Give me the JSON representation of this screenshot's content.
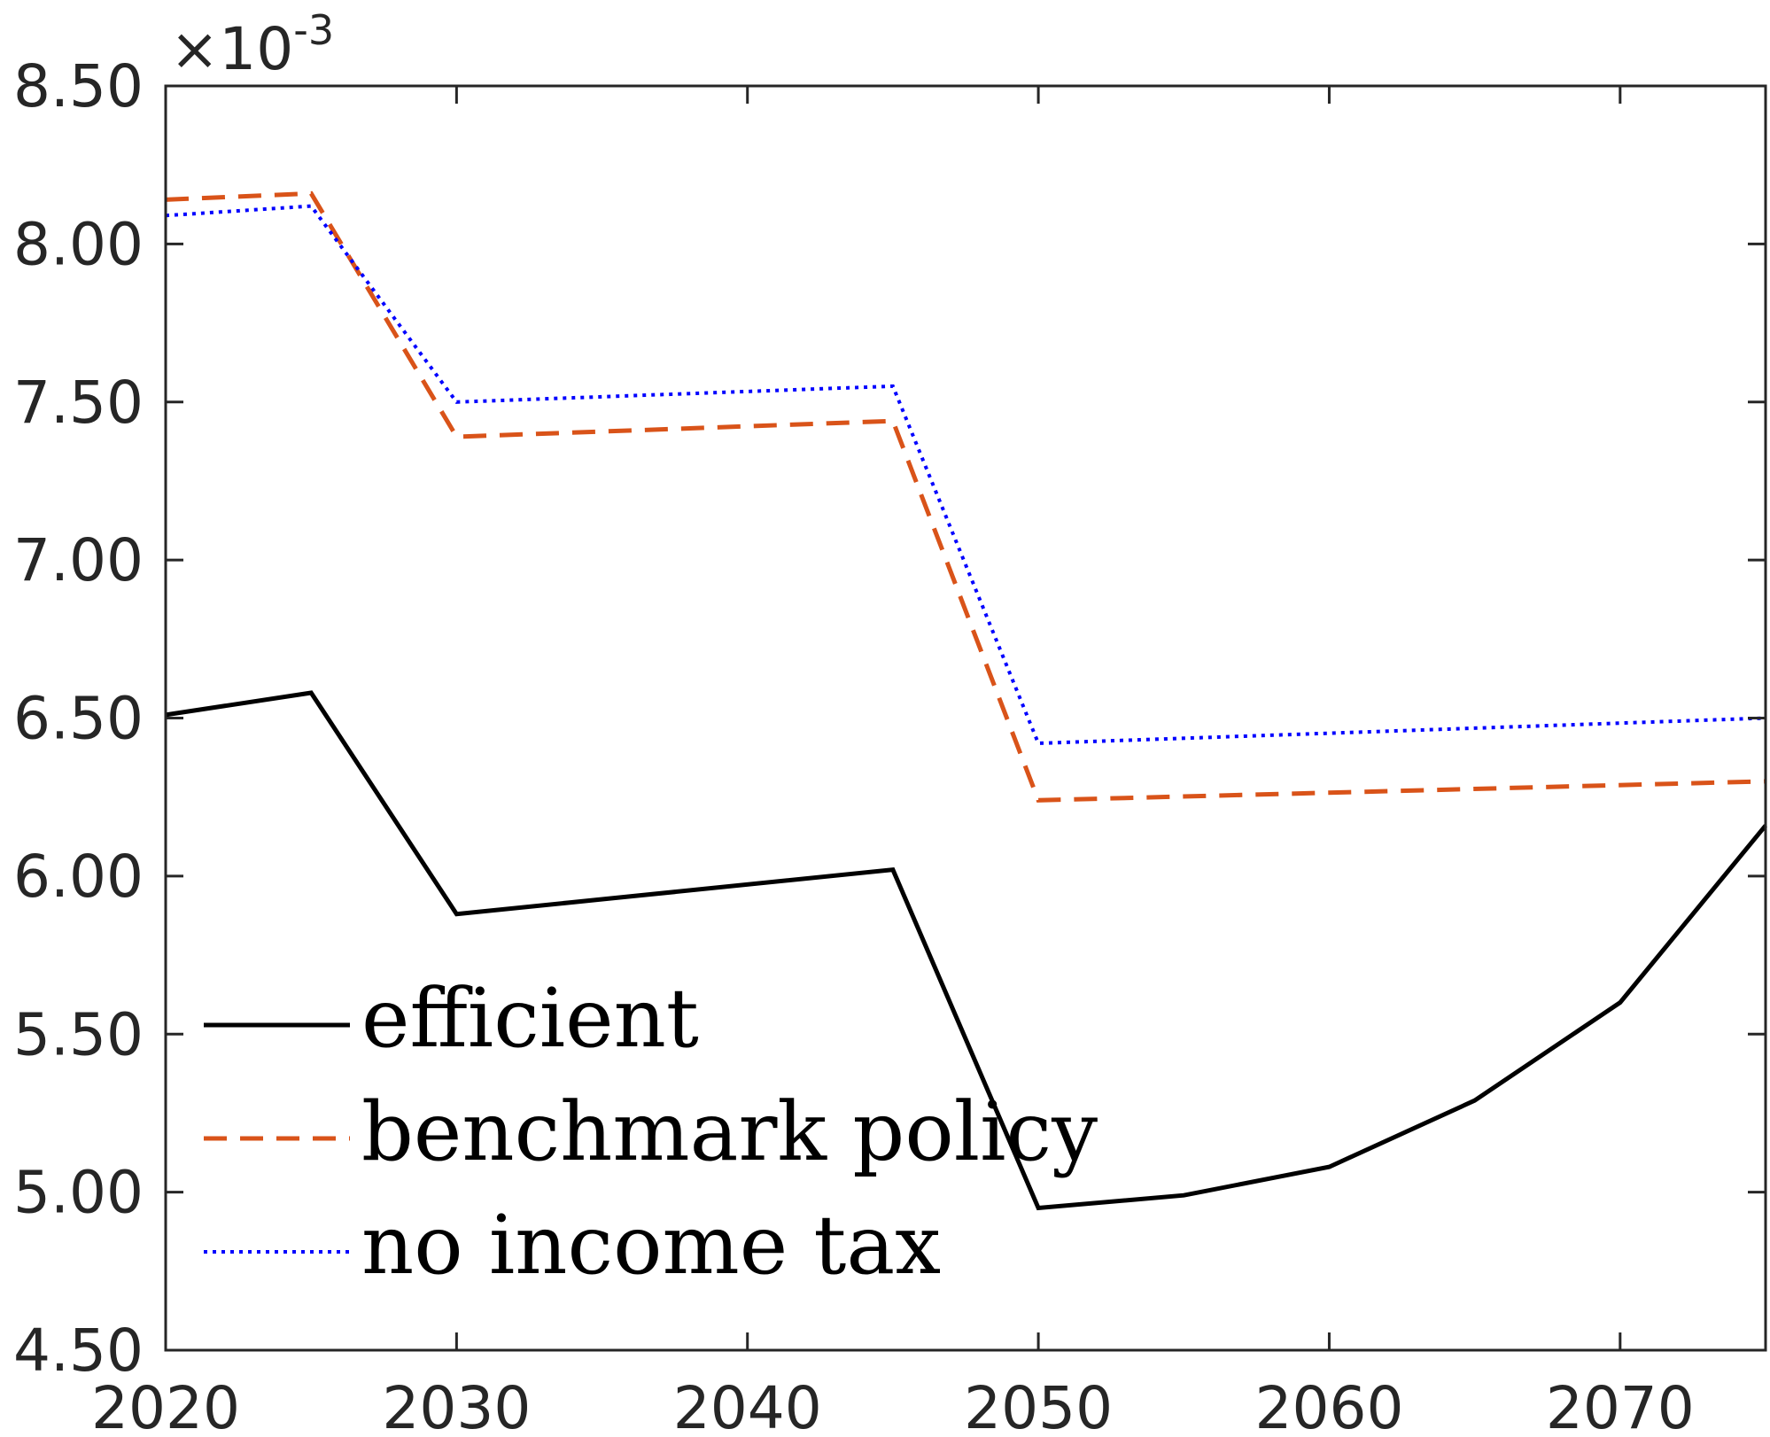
{
  "chart_data": {
    "type": "line",
    "x_ticks": [
      "2020",
      "2030",
      "2040",
      "2050",
      "2060",
      "2070"
    ],
    "y_ticks": [
      "4.50",
      "5.00",
      "5.50",
      "6.00",
      "6.50",
      "7.00",
      "7.50",
      "8.00",
      "8.50"
    ],
    "y_multiplier": {
      "base": "×10",
      "exponent": "-3"
    },
    "xlim": [
      2020,
      2075
    ],
    "ylim": [
      4.5,
      8.5
    ],
    "grid": false,
    "legend_position": "bottom-left",
    "series": [
      {
        "name": "efficient",
        "color": "#000000",
        "style": "solid",
        "x": [
          2020,
          2025,
          2030,
          2045,
          2050,
          2055,
          2060,
          2065,
          2070,
          2075
        ],
        "y": [
          6.51,
          6.58,
          5.88,
          6.02,
          4.95,
          4.99,
          5.08,
          5.29,
          5.6,
          6.16
        ]
      },
      {
        "name": "benchmark policy",
        "color": "#D95319",
        "style": "dashed",
        "x": [
          2020,
          2025,
          2030,
          2045,
          2050,
          2075
        ],
        "y": [
          8.14,
          8.16,
          7.39,
          7.44,
          6.24,
          6.3
        ]
      },
      {
        "name": "no income tax",
        "color": "#0000FF",
        "style": "dotted",
        "x": [
          2020,
          2025,
          2030,
          2045,
          2050,
          2075
        ],
        "y": [
          8.09,
          8.12,
          7.5,
          7.55,
          6.42,
          6.5
        ]
      }
    ]
  }
}
